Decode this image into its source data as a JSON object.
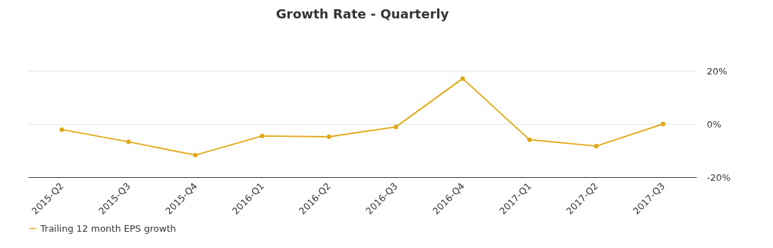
{
  "chart_data": {
    "type": "line",
    "title": "Growth Rate - Quarterly",
    "categories": [
      "2015-Q2",
      "2015-Q3",
      "2015-Q4",
      "2016-Q1",
      "2016-Q2",
      "2016-Q3",
      "2016-Q4",
      "2017-Q1",
      "2017-Q2",
      "2017-Q3"
    ],
    "series": [
      {
        "name": "Trailing 12 month EPS growth",
        "color": "#e0a914",
        "values": [
          -2.1,
          -6.7,
          -11.7,
          -4.5,
          -4.8,
          -1.1,
          17.1,
          -5.9,
          -8.3,
          0
        ]
      }
    ],
    "ylim": [
      -20,
      20
    ],
    "yticks": [
      {
        "value": -20,
        "label": "-20%"
      },
      {
        "value": 0,
        "label": "0%"
      },
      {
        "value": 20,
        "label": "20%"
      }
    ],
    "grid": "y",
    "legend": "bottom",
    "marker": "circle",
    "line_style": "solid"
  }
}
